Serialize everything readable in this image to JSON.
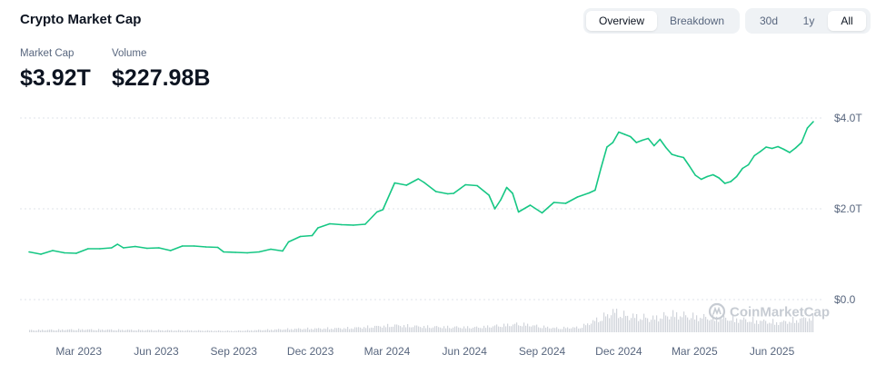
{
  "header": {
    "title": "Crypto Market Cap"
  },
  "view_tabs": [
    {
      "label": "Overview",
      "active": true
    },
    {
      "label": "Breakdown",
      "active": false
    }
  ],
  "range_tabs": [
    {
      "label": "30d",
      "active": false
    },
    {
      "label": "1y",
      "active": false
    },
    {
      "label": "All",
      "active": true
    }
  ],
  "stats": {
    "market_cap": {
      "label": "Market Cap",
      "value": "$3.92T"
    },
    "volume": {
      "label": "Volume",
      "value": "$227.98B"
    }
  },
  "watermark": "CoinMarketCap",
  "colors": {
    "line": "#16c784",
    "volume": "#d1d5db",
    "grid": "#dfe3e8",
    "text": "#58667e"
  },
  "chart_data": {
    "type": "line",
    "title": "",
    "xlabel": "",
    "ylabel": "",
    "y_ticks": [
      {
        "value": 0,
        "label": "$0.0"
      },
      {
        "value": 2,
        "label": "$2.0T"
      },
      {
        "value": 4,
        "label": "$4.0T"
      }
    ],
    "ylim": [
      0,
      4.0
    ],
    "y_unit": "trillion USD",
    "x_ticks": [
      {
        "date": "2023-03-01",
        "label": "Mar 2023"
      },
      {
        "date": "2023-06-01",
        "label": "Jun 2023"
      },
      {
        "date": "2023-09-01",
        "label": "Sep 2023"
      },
      {
        "date": "2023-12-01",
        "label": "Dec 2023"
      },
      {
        "date": "2024-03-01",
        "label": "Mar 2024"
      },
      {
        "date": "2024-06-01",
        "label": "Jun 2024"
      },
      {
        "date": "2024-09-01",
        "label": "Sep 2024"
      },
      {
        "date": "2024-12-01",
        "label": "Dec 2024"
      },
      {
        "date": "2025-03-01",
        "label": "Mar 2025"
      },
      {
        "date": "2025-06-01",
        "label": "Jun 2025"
      }
    ],
    "grid": "horizontal",
    "series": [
      {
        "name": "Market Cap",
        "points": [
          [
            "2023-01-01",
            1.05
          ],
          [
            "2023-01-15",
            1.0
          ],
          [
            "2023-01-29",
            1.08
          ],
          [
            "2023-02-12",
            1.03
          ],
          [
            "2023-02-26",
            1.02
          ],
          [
            "2023-03-12",
            1.12
          ],
          [
            "2023-03-26",
            1.12
          ],
          [
            "2023-04-09",
            1.14
          ],
          [
            "2023-04-16",
            1.22
          ],
          [
            "2023-04-23",
            1.14
          ],
          [
            "2023-05-07",
            1.17
          ],
          [
            "2023-05-21",
            1.13
          ],
          [
            "2023-06-04",
            1.14
          ],
          [
            "2023-06-18",
            1.08
          ],
          [
            "2023-07-02",
            1.18
          ],
          [
            "2023-07-16",
            1.18
          ],
          [
            "2023-07-30",
            1.16
          ],
          [
            "2023-08-13",
            1.15
          ],
          [
            "2023-08-20",
            1.05
          ],
          [
            "2023-09-03",
            1.04
          ],
          [
            "2023-09-17",
            1.03
          ],
          [
            "2023-10-01",
            1.05
          ],
          [
            "2023-10-15",
            1.11
          ],
          [
            "2023-10-29",
            1.07
          ],
          [
            "2023-11-05",
            1.27
          ],
          [
            "2023-11-19",
            1.39
          ],
          [
            "2023-12-03",
            1.41
          ],
          [
            "2023-12-10",
            1.58
          ],
          [
            "2023-12-24",
            1.67
          ],
          [
            "2024-01-07",
            1.65
          ],
          [
            "2024-01-21",
            1.64
          ],
          [
            "2024-02-04",
            1.66
          ],
          [
            "2024-02-18",
            1.93
          ],
          [
            "2024-02-25",
            1.98
          ],
          [
            "2024-03-10",
            2.57
          ],
          [
            "2024-03-24",
            2.52
          ],
          [
            "2024-04-07",
            2.66
          ],
          [
            "2024-04-14",
            2.58
          ],
          [
            "2024-04-28",
            2.38
          ],
          [
            "2024-05-12",
            2.33
          ],
          [
            "2024-05-19",
            2.34
          ],
          [
            "2024-06-02",
            2.53
          ],
          [
            "2024-06-16",
            2.51
          ],
          [
            "2024-06-30",
            2.3
          ],
          [
            "2024-07-07",
            2.0
          ],
          [
            "2024-07-14",
            2.2
          ],
          [
            "2024-07-21",
            2.47
          ],
          [
            "2024-07-28",
            2.34
          ],
          [
            "2024-08-04",
            1.93
          ],
          [
            "2024-08-18",
            2.08
          ],
          [
            "2024-09-01",
            1.91
          ],
          [
            "2024-09-15",
            2.14
          ],
          [
            "2024-09-29",
            2.12
          ],
          [
            "2024-10-13",
            2.26
          ],
          [
            "2024-10-27",
            2.35
          ],
          [
            "2024-11-03",
            2.41
          ],
          [
            "2024-11-10",
            2.9
          ],
          [
            "2024-11-17",
            3.36
          ],
          [
            "2024-11-24",
            3.46
          ],
          [
            "2024-12-01",
            3.69
          ],
          [
            "2024-12-08",
            3.64
          ],
          [
            "2024-12-15",
            3.59
          ],
          [
            "2024-12-22",
            3.46
          ],
          [
            "2024-12-29",
            3.51
          ],
          [
            "2025-01-05",
            3.55
          ],
          [
            "2025-01-12",
            3.39
          ],
          [
            "2025-01-19",
            3.53
          ],
          [
            "2025-01-26",
            3.35
          ],
          [
            "2025-02-02",
            3.2
          ],
          [
            "2025-02-09",
            3.16
          ],
          [
            "2025-02-16",
            3.13
          ],
          [
            "2025-02-23",
            2.94
          ],
          [
            "2025-03-02",
            2.74
          ],
          [
            "2025-03-09",
            2.65
          ],
          [
            "2025-03-16",
            2.71
          ],
          [
            "2025-03-23",
            2.75
          ],
          [
            "2025-03-30",
            2.68
          ],
          [
            "2025-04-06",
            2.56
          ],
          [
            "2025-04-13",
            2.6
          ],
          [
            "2025-04-20",
            2.71
          ],
          [
            "2025-04-27",
            2.89
          ],
          [
            "2025-05-04",
            2.97
          ],
          [
            "2025-05-11",
            3.17
          ],
          [
            "2025-05-18",
            3.26
          ],
          [
            "2025-05-25",
            3.36
          ],
          [
            "2025-06-01",
            3.33
          ],
          [
            "2025-06-08",
            3.37
          ],
          [
            "2025-06-15",
            3.31
          ],
          [
            "2025-06-22",
            3.24
          ],
          [
            "2025-06-29",
            3.34
          ],
          [
            "2025-07-06",
            3.46
          ],
          [
            "2025-07-13",
            3.78
          ],
          [
            "2025-07-20",
            3.92
          ]
        ]
      }
    ],
    "volume_series": {
      "name": "Volume",
      "points": [
        [
          "2023-01-01",
          0.03
        ],
        [
          "2023-03-01",
          0.04
        ],
        [
          "2023-06-01",
          0.03
        ],
        [
          "2023-09-01",
          0.02
        ],
        [
          "2023-11-15",
          0.05
        ],
        [
          "2024-01-15",
          0.06
        ],
        [
          "2024-03-10",
          0.1
        ],
        [
          "2024-04-15",
          0.08
        ],
        [
          "2024-06-15",
          0.07
        ],
        [
          "2024-08-05",
          0.12
        ],
        [
          "2024-09-15",
          0.06
        ],
        [
          "2024-10-15",
          0.07
        ],
        [
          "2024-11-12",
          0.22
        ],
        [
          "2024-11-25",
          0.3
        ],
        [
          "2024-12-08",
          0.24
        ],
        [
          "2025-01-10",
          0.2
        ],
        [
          "2025-02-03",
          0.26
        ],
        [
          "2025-03-03",
          0.22
        ],
        [
          "2025-04-07",
          0.2
        ],
        [
          "2025-05-10",
          0.17
        ],
        [
          "2025-06-10",
          0.14
        ],
        [
          "2025-07-15",
          0.21
        ]
      ]
    }
  }
}
